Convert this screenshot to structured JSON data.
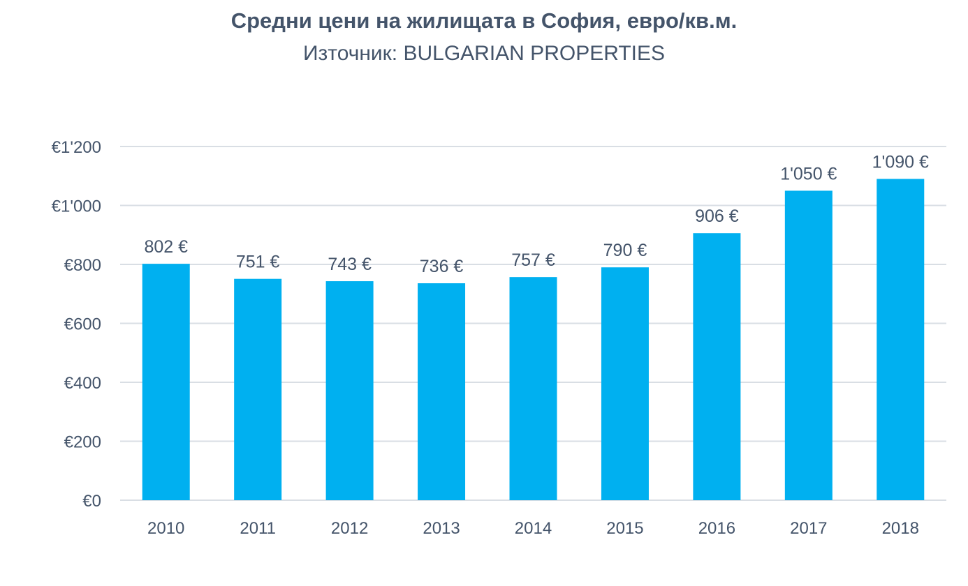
{
  "chart_data": {
    "type": "bar",
    "title": "Средни цени на жилищата в София, евро/кв.м.",
    "subtitle": "Източник: BULGARIAN PROPERTIES",
    "categories": [
      "2010",
      "2011",
      "2012",
      "2013",
      "2014",
      "2015",
      "2016",
      "2017",
      "2018"
    ],
    "values": [
      802,
      751,
      743,
      736,
      757,
      790,
      906,
      1050,
      1090
    ],
    "data_labels": [
      "802 €",
      "751 €",
      "743 €",
      "736 €",
      "757 €",
      "790 €",
      "906 €",
      "1'050 €",
      "1'090 €"
    ],
    "yticks": [
      0,
      200,
      400,
      600,
      800,
      1000,
      1200
    ],
    "ytick_labels": [
      "€0",
      "€200",
      "€400",
      "€600",
      "€800",
      "€1'000",
      "€1'200"
    ],
    "ylim": [
      0,
      1200
    ],
    "grid": true,
    "legend": "none",
    "colors": {
      "bar": "#00B0F0",
      "text": "#44546A",
      "grid": "#D9DEE4"
    }
  }
}
